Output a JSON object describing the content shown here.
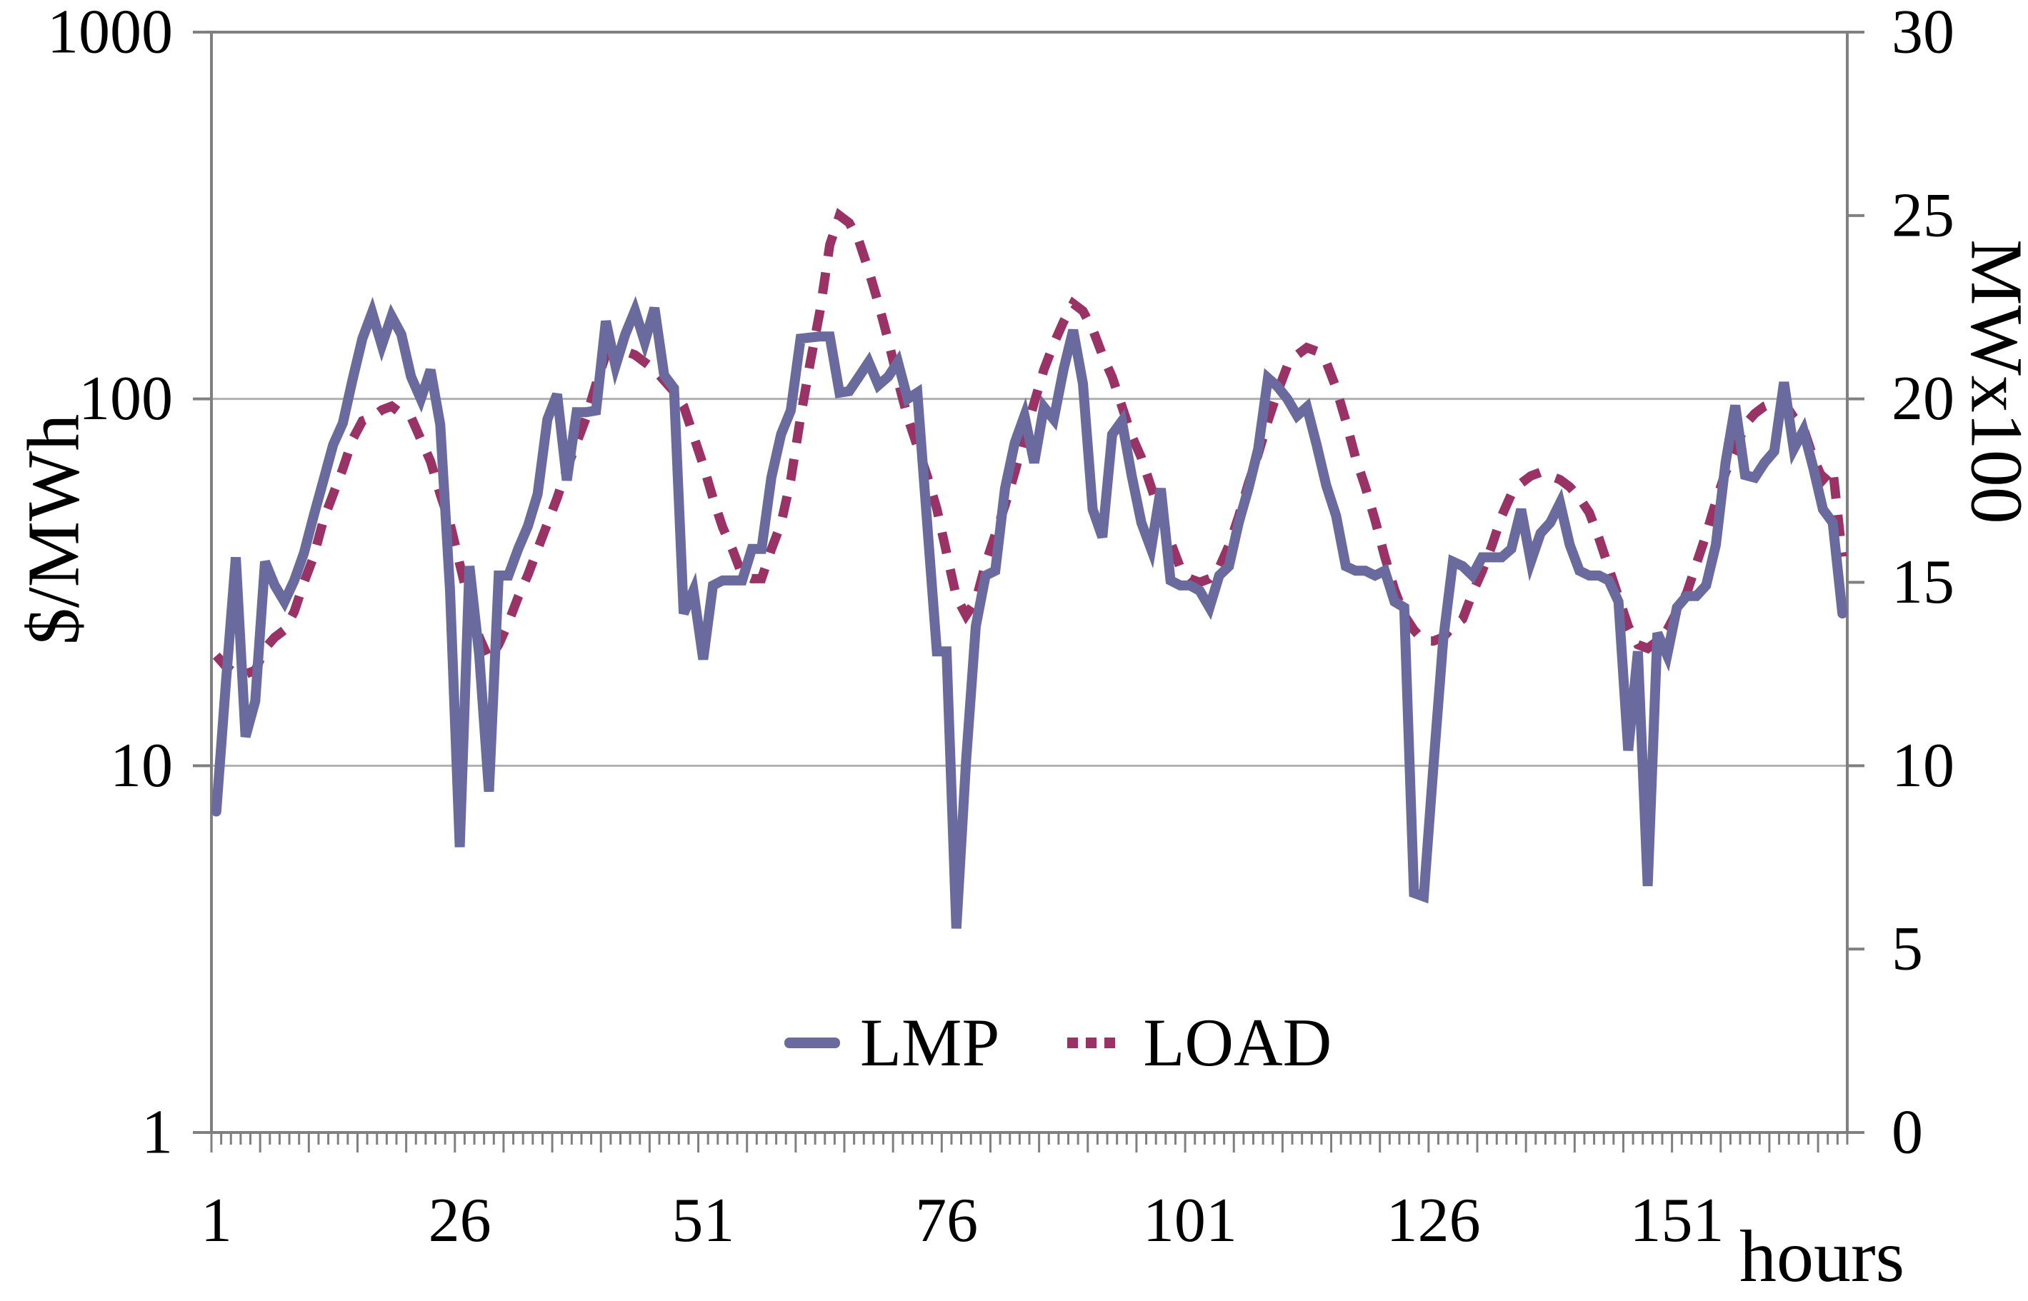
{
  "axis_titles": {
    "left": "$/MWh",
    "right": "MWx100",
    "x": "hours"
  },
  "legend": {
    "items": [
      {
        "label": "LMP"
      },
      {
        "label": "LOAD"
      }
    ]
  },
  "colors": {
    "lmp": "#6a6a9e",
    "load": "#993366",
    "gridline": "#b0b0b0",
    "frame": "#808080",
    "text": "#000000",
    "background": "#ffffff"
  },
  "chart_data": {
    "type": "line",
    "title": "",
    "x_label": "hours",
    "x_start_hour": 1,
    "x_end_hour": 168,
    "axes": {
      "left": {
        "label": "$/MWh",
        "scale": "log",
        "min": 1,
        "max": 1000,
        "ticks": [
          1000,
          100,
          10,
          1
        ]
      },
      "right": {
        "label": "MWx100",
        "scale": "linear",
        "min": 0,
        "max": 30,
        "ticks": [
          30,
          25,
          20,
          15,
          10,
          5,
          0
        ]
      },
      "x": {
        "label": "hours",
        "tick_labels": [
          1,
          26,
          51,
          76,
          101,
          126,
          151
        ]
      }
    },
    "gridlines": {
      "horizontal_left_axis_values": [
        100,
        10
      ],
      "vertical": false
    },
    "legend_position": "bottom-center-inside",
    "series": [
      {
        "name": "LMP",
        "axis": "left",
        "unit": "$/MWh",
        "style": "solid",
        "color": "#6a6a9e",
        "values": [
          7.5,
          17,
          37,
          12,
          15,
          36,
          31,
          28,
          32,
          38,
          48,
          60,
          75,
          86,
          113,
          146,
          172,
          140,
          168,
          150,
          115,
          100,
          120,
          85,
          30,
          6,
          35,
          20,
          8.5,
          33,
          33,
          39,
          45,
          55,
          88,
          103,
          60,
          92,
          92,
          93,
          163,
          123,
          150,
          174,
          143,
          177,
          116,
          107,
          26,
          30,
          19.5,
          31,
          32,
          32,
          32,
          39,
          39,
          61,
          80,
          93,
          146,
          147,
          148,
          148,
          104,
          105,
          115,
          126,
          109,
          115,
          126,
          100,
          104,
          46,
          20.5,
          20.5,
          3.6,
          10.3,
          24,
          33,
          34,
          57,
          76,
          90,
          67,
          95,
          88,
          120,
          154,
          110,
          50,
          42,
          80,
          87,
          62,
          46,
          39,
          57,
          32,
          31,
          31,
          30,
          27,
          33,
          35,
          46,
          57,
          73,
          114,
          108,
          100,
          90,
          95,
          75,
          58,
          48,
          35,
          34,
          34,
          33,
          34,
          28,
          27,
          4.5,
          4.4,
          10,
          22,
          36,
          35,
          33,
          37,
          37,
          37,
          39,
          50,
          36,
          43,
          46,
          52,
          40,
          34,
          33,
          33,
          32,
          28,
          11,
          20.5,
          4.7,
          23,
          20,
          27,
          29,
          29,
          31,
          40,
          67,
          96,
          62,
          61,
          67,
          72,
          111,
          73,
          82,
          65,
          50,
          46,
          26
        ]
      },
      {
        "name": "LOAD",
        "axis": "right",
        "unit": "MWx100",
        "style": "dashed",
        "color": "#993366",
        "values": [
          13.0,
          12.7,
          12.5,
          12.5,
          12.6,
          13.2,
          13.5,
          13.7,
          14.2,
          15.0,
          15.7,
          16.7,
          17.4,
          18.1,
          18.9,
          19.4,
          19.5,
          19.7,
          19.8,
          19.6,
          19.5,
          18.9,
          18.3,
          17.4,
          16.6,
          15.5,
          14.4,
          13.5,
          12.9,
          13.3,
          13.9,
          14.6,
          15.2,
          15.9,
          16.6,
          17.3,
          18.1,
          18.8,
          19.5,
          20.4,
          21.2,
          21.3,
          21.3,
          21.2,
          21.0,
          20.8,
          20.5,
          20.2,
          19.8,
          19.0,
          18.2,
          17.3,
          16.5,
          15.9,
          15.2,
          15.1,
          15.1,
          15.9,
          16.6,
          17.8,
          19.5,
          21.0,
          22.4,
          24.2,
          25.0,
          24.8,
          24.3,
          23.5,
          22.6,
          21.6,
          20.5,
          19.5,
          18.7,
          17.9,
          17.0,
          15.8,
          14.6,
          14.1,
          14.5,
          15.5,
          16.3,
          17.1,
          18.0,
          19.0,
          19.9,
          20.8,
          21.5,
          22.1,
          22.6,
          22.4,
          21.9,
          21.2,
          20.6,
          19.8,
          19.0,
          18.4,
          17.6,
          16.8,
          16.1,
          15.4,
          15.1,
          15.0,
          15.1,
          15.4,
          16.0,
          16.8,
          17.7,
          18.5,
          19.4,
          20.2,
          20.9,
          21.2,
          21.4,
          21.3,
          21.0,
          20.3,
          19.4,
          18.4,
          17.6,
          16.7,
          15.7,
          14.8,
          14.1,
          13.7,
          13.4,
          13.4,
          13.5,
          13.8,
          14.0,
          14.7,
          15.3,
          16.0,
          16.8,
          17.4,
          17.7,
          17.9,
          18.0,
          17.9,
          17.8,
          17.6,
          17.3,
          16.9,
          16.2,
          15.4,
          14.6,
          13.8,
          13.3,
          13.2,
          13.4,
          13.7,
          14.2,
          14.7,
          15.5,
          16.3,
          17.2,
          18.0,
          18.6,
          19.3,
          19.6,
          19.8,
          19.9,
          19.9,
          19.5,
          19.2,
          18.4,
          17.8,
          18.1,
          15.7
        ]
      }
    ]
  }
}
